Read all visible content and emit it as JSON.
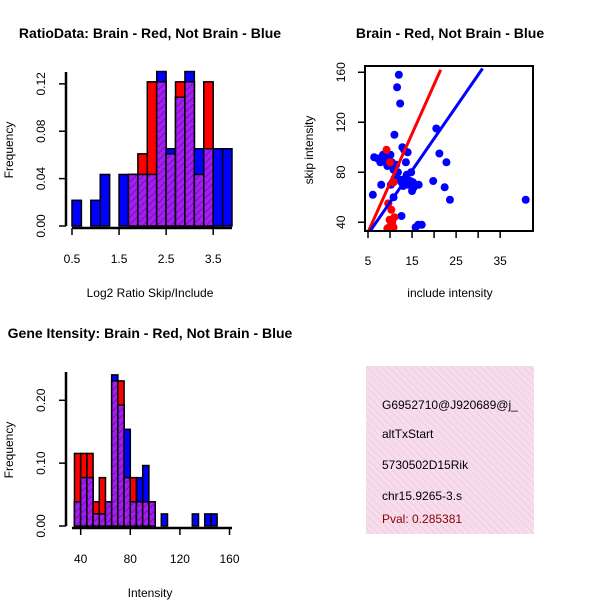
{
  "colors": {
    "brain": "#ff0000",
    "not_brain": "#0000ff",
    "overlap": "#a020f0",
    "info_panel": "#f7dcec",
    "pval": "#8b0000"
  },
  "chart_data": [
    {
      "type": "bar",
      "title": "RatioData: Brain - Red, Not Brain - Blue",
      "xlabel": "Log2 Ratio Skip/Include",
      "ylabel": "Frequency",
      "xlim": [
        0.5,
        3.9
      ],
      "ylim": [
        0,
        0.13
      ],
      "xticks": [
        0.5,
        1.5,
        2.5,
        3.5
      ],
      "xtick_labels": [
        "0.5",
        "1.5",
        "2.5",
        "3.5"
      ],
      "yticks": [
        0,
        0.04,
        0.08,
        0.12
      ],
      "ytick_labels": [
        "0.00",
        "0.04",
        "0.08",
        "0.12"
      ],
      "bin_width": 0.2,
      "bin_starts": [
        0.5,
        0.7,
        0.9,
        1.1,
        1.3,
        1.5,
        1.7,
        1.9,
        2.1,
        2.3,
        2.5,
        2.7,
        2.9,
        3.1,
        3.3,
        3.5,
        3.7
      ],
      "series": [
        {
          "name": "Brain",
          "values": [
            0,
            0,
            0,
            0,
            0,
            0,
            0.0435,
            0.0609,
            0.1217,
            0.1217,
            0.0609,
            0.1217,
            0.1217,
            0.0435,
            0.1217,
            0,
            0
          ]
        },
        {
          "name": "Not Brain",
          "values": [
            0.0217,
            0,
            0.0217,
            0.0435,
            0,
            0.0435,
            0.0435,
            0.0435,
            0.0435,
            0.1304,
            0.0652,
            0.1087,
            0.1304,
            0.0652,
            0.0652,
            0.0652,
            0.0652
          ]
        }
      ]
    },
    {
      "type": "scatter",
      "title": "Brain - Red, Not Brain - Blue",
      "xlabel": "include intensity",
      "ylabel": "skip intensity",
      "xlim": [
        5,
        42
      ],
      "ylim": [
        33,
        165
      ],
      "xticks": [
        5,
        15,
        25,
        35
      ],
      "xtick_labels": [
        "5",
        "15",
        "25",
        "35"
      ],
      "xticks_unlabeled": [
        10,
        20,
        30
      ],
      "yticks": [
        40,
        80,
        120,
        160
      ],
      "ytick_labels": [
        "40",
        "80",
        "120",
        "160"
      ],
      "series": [
        {
          "name": "Not Brain",
          "x": [
            6.1,
            6.4,
            7.2,
            7.8,
            8.0,
            8.4,
            8.8,
            9.0,
            9.4,
            9.7,
            10.1,
            10.4,
            10.8,
            10.2,
            10.6,
            11.0,
            11.4,
            11.8,
            12.2,
            12.6,
            13.0,
            13.4,
            13.8,
            14.2,
            14.6,
            15.0,
            15.4,
            12.0,
            11.6,
            11.0,
            12.8,
            13.2,
            14.0,
            15.2,
            16.5,
            17.2,
            19.8,
            20.5,
            21.2,
            22.4,
            22.8,
            23.6,
            12.3,
            13.6,
            14.8,
            40.8,
            15.8,
            16.4,
            9.6,
            10.8,
            12.6
          ],
          "y": [
            62,
            92,
            91,
            88,
            70,
            94,
            90,
            88,
            85,
            92,
            94,
            88,
            82,
            70,
            72,
            75,
            86,
            80,
            74,
            72,
            69,
            75,
            78,
            70,
            73,
            65,
            68,
            158,
            148,
            110,
            100,
            98,
            96,
            72,
            70,
            38,
            73,
            115,
            95,
            68,
            88,
            58,
            135,
            88,
            80,
            58,
            36,
            38,
            55,
            60,
            45
          ]
        },
        {
          "name": "Brain",
          "x": [
            9.2,
            10.0,
            10.8,
            9.6,
            10.3,
            11.0,
            9.9,
            10.5,
            10.2,
            9.8,
            9.4,
            10.8
          ],
          "y": [
            98,
            88,
            72,
            55,
            50,
            44,
            42,
            40,
            38,
            36,
            35,
            36
          ]
        }
      ],
      "fit_lines": [
        {
          "name": "Brain",
          "x": [
            5,
            21.5
          ],
          "y": [
            32,
            162
          ]
        },
        {
          "name": "Not Brain",
          "x": [
            5.5,
            31
          ],
          "y": [
            33,
            163
          ]
        }
      ]
    },
    {
      "type": "bar",
      "title": "Gene Itensity: Brain - Red, Not Brain - Blue",
      "xlabel": "Intensity",
      "ylabel": "Frequency",
      "xlim": [
        33,
        162
      ],
      "ylim": [
        0,
        0.245
      ],
      "xticks": [
        40,
        80,
        120,
        160
      ],
      "xtick_labels": [
        "40",
        "80",
        "120",
        "160"
      ],
      "yticks": [
        0,
        0.1,
        0.2
      ],
      "ytick_labels": [
        "0.00",
        "0.10",
        "0.20"
      ],
      "bin_width": 5,
      "bin_starts": [
        35,
        40,
        45,
        50,
        55,
        60,
        65,
        70,
        75,
        80,
        85,
        90,
        95,
        100,
        105,
        110,
        115,
        120,
        125,
        130,
        135,
        140,
        145,
        150,
        155
      ],
      "series": [
        {
          "name": "Brain",
          "values": [
            0.1154,
            0.1154,
            0.1154,
            0.0385,
            0.0769,
            0.0385,
            0.2308,
            0.2308,
            0.0769,
            0.0769,
            0.0385,
            0.0385,
            0.0385,
            0,
            0,
            0,
            0,
            0,
            0,
            0,
            0,
            0,
            0,
            0,
            0
          ]
        },
        {
          "name": "Not Brain",
          "values": [
            0.0385,
            0.0769,
            0.0769,
            0.0192,
            0.0192,
            0.0385,
            0.2404,
            0.1923,
            0.1538,
            0.0385,
            0.0769,
            0.0962,
            0.0385,
            0,
            0.0192,
            0,
            0,
            0,
            0,
            0.0192,
            0,
            0.0192,
            0.0192,
            0,
            0
          ]
        }
      ]
    }
  ],
  "info": {
    "id": "G6952710@J920689@j_",
    "event_type": "altTxStart",
    "gene": "5730502D15Rik",
    "location": "chr15.9265-3.s",
    "pval": "Pval: 0.285381"
  }
}
